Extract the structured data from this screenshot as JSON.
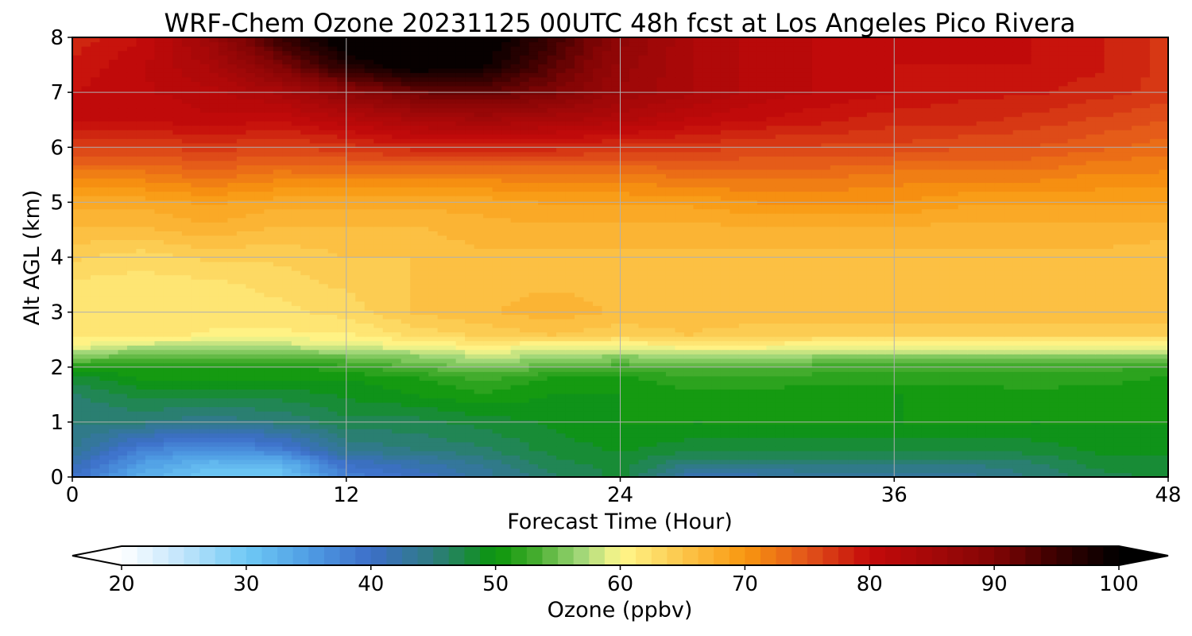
{
  "chart_data": {
    "type": "heatmap",
    "title": "WRF-Chem Ozone  20231125 00UTC 48h fcst at Los Angeles Pico Rivera",
    "xlabel": "Forecast Time (Hour)",
    "ylabel": "Alt AGL (km)",
    "xlim": [
      0,
      48
    ],
    "ylim": [
      0,
      8
    ],
    "x_ticks": [
      0,
      12,
      24,
      36,
      48
    ],
    "y_ticks": [
      0,
      1,
      2,
      3,
      4,
      5,
      6,
      7,
      8
    ],
    "grid": true,
    "x": [
      0,
      3,
      6,
      9,
      12,
      15,
      18,
      21,
      24,
      27,
      30,
      33,
      36,
      39,
      42,
      45,
      48
    ],
    "y": [
      0,
      0.25,
      0.5,
      1,
      1.5,
      1.8,
      2,
      2.2,
      2.4,
      2.6,
      3,
      3.5,
      4,
      4.5,
      5,
      5.5,
      6,
      6.5,
      7,
      7.5,
      8
    ],
    "z": [
      [
        40,
        33,
        30,
        30,
        38,
        40,
        43,
        46,
        48,
        42,
        42,
        43,
        43,
        43,
        45,
        47,
        48
      ],
      [
        42,
        35,
        32,
        32,
        40,
        42,
        44,
        47,
        48,
        45,
        45,
        45,
        45,
        45,
        46,
        48,
        48
      ],
      [
        44,
        38,
        36,
        38,
        44,
        45,
        46,
        48,
        49,
        48,
        48,
        48,
        48,
        48,
        48,
        49,
        49
      ],
      [
        45,
        45,
        44,
        45,
        47,
        47,
        48,
        49,
        50,
        50,
        50,
        50,
        50,
        50,
        50,
        50,
        50
      ],
      [
        46,
        48,
        48,
        48,
        49,
        50,
        51,
        50,
        50,
        51,
        51,
        50,
        50,
        50,
        51,
        50,
        50
      ],
      [
        48,
        50,
        50,
        50,
        50,
        51,
        53,
        51,
        51,
        52,
        52,
        52,
        52,
        52,
        52,
        52,
        51
      ],
      [
        51,
        51,
        51,
        51,
        52,
        54,
        55,
        54,
        53,
        54,
        54,
        53,
        53,
        53,
        53,
        53,
        52
      ],
      [
        56,
        54,
        54,
        54,
        55,
        56,
        58,
        57,
        56,
        57,
        57,
        56,
        56,
        56,
        56,
        56,
        56
      ],
      [
        60,
        58,
        58,
        58,
        59,
        60,
        61,
        60,
        60,
        61,
        61,
        60,
        60,
        60,
        60,
        60,
        60
      ],
      [
        62,
        62,
        61,
        61,
        61,
        63,
        64,
        65,
        64,
        65,
        64,
        64,
        64,
        64,
        64,
        64,
        64
      ],
      [
        62,
        62,
        62,
        62,
        63,
        65,
        66,
        67,
        66,
        66,
        66,
        66,
        66,
        66,
        66,
        66,
        66
      ],
      [
        62,
        62,
        62,
        63,
        64,
        65,
        66,
        66,
        66,
        66,
        66,
        66,
        66,
        66,
        66,
        66,
        66
      ],
      [
        64,
        63,
        64,
        64,
        65,
        65,
        66,
        66,
        66,
        66,
        66,
        66,
        66,
        66,
        66,
        66,
        65
      ],
      [
        66,
        66,
        67,
        66,
        66,
        66,
        67,
        67,
        67,
        67,
        67,
        67,
        67,
        67,
        67,
        67,
        67
      ],
      [
        68,
        68,
        69,
        68,
        68,
        68,
        68,
        69,
        69,
        69,
        70,
        70,
        70,
        69,
        69,
        69,
        69
      ],
      [
        72,
        72,
        73,
        72,
        72,
        72,
        72,
        72,
        72,
        73,
        73,
        73,
        72,
        72,
        72,
        71,
        71
      ],
      [
        76,
        76,
        77,
        76,
        77,
        78,
        78,
        78,
        77,
        77,
        76,
        76,
        76,
        75,
        75,
        74,
        73
      ],
      [
        80,
        80,
        81,
        80,
        82,
        84,
        85,
        84,
        83,
        81,
        80,
        79,
        78,
        78,
        77,
        76,
        75
      ],
      [
        80,
        81,
        82,
        84,
        88,
        91,
        92,
        90,
        86,
        84,
        82,
        81,
        80,
        79,
        79,
        78,
        77
      ],
      [
        79,
        81,
        84,
        90,
        97,
        101,
        99,
        93,
        87,
        84,
        82,
        81,
        80,
        80,
        80,
        79,
        77
      ],
      [
        78,
        80,
        86,
        95,
        101,
        103,
        101,
        95,
        88,
        84,
        82,
        81,
        81,
        81,
        80,
        79,
        77
      ]
    ],
    "colorbar": {
      "label": "Ozone  (ppbv)",
      "min": 20,
      "max": 100,
      "ticks": [
        20,
        30,
        40,
        50,
        60,
        70,
        80,
        90,
        100
      ],
      "extend": "both",
      "levels": 64,
      "colors": [
        {
          "v": 20,
          "c": "#ffffff"
        },
        {
          "v": 25,
          "c": "#bfe4fb"
        },
        {
          "v": 30,
          "c": "#6fc9f5"
        },
        {
          "v": 35,
          "c": "#4f9de4"
        },
        {
          "v": 40,
          "c": "#3d6ec9"
        },
        {
          "v": 45,
          "c": "#2e7c80"
        },
        {
          "v": 50,
          "c": "#0a960a"
        },
        {
          "v": 53,
          "c": "#40ab2a"
        },
        {
          "v": 57,
          "c": "#a5d87a"
        },
        {
          "v": 60,
          "c": "#fff88c"
        },
        {
          "v": 65,
          "c": "#fcc64a"
        },
        {
          "v": 70,
          "c": "#f99710"
        },
        {
          "v": 75,
          "c": "#e2541a"
        },
        {
          "v": 80,
          "c": "#c40a0a"
        },
        {
          "v": 85,
          "c": "#a40808"
        },
        {
          "v": 90,
          "c": "#820404"
        },
        {
          "v": 95,
          "c": "#3a0101"
        },
        {
          "v": 100,
          "c": "#000000"
        }
      ]
    }
  }
}
